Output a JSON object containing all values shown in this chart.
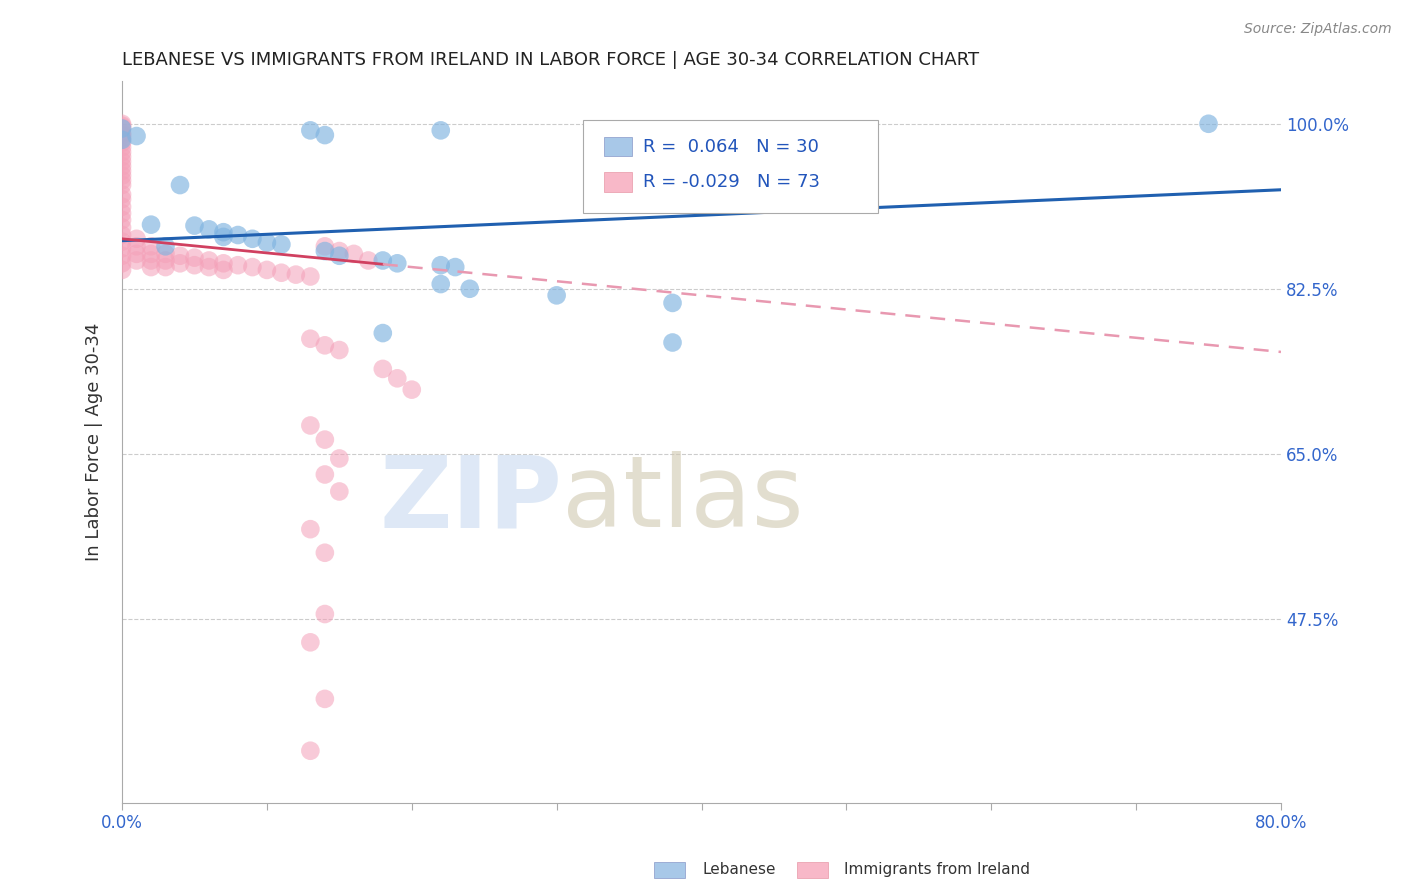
{
  "title": "LEBANESE VS IMMIGRANTS FROM IRELAND IN LABOR FORCE | AGE 30-34 CORRELATION CHART",
  "source": "Source: ZipAtlas.com",
  "ylabel": "In Labor Force | Age 30-34",
  "x_min": 0.0,
  "x_max": 0.8,
  "y_min": 0.28,
  "y_max": 1.045,
  "x_ticks": [
    0.0,
    0.1,
    0.2,
    0.3,
    0.4,
    0.5,
    0.6,
    0.7,
    0.8
  ],
  "x_tick_labels": [
    "0.0%",
    "",
    "",
    "",
    "",
    "",
    "",
    "",
    "80.0%"
  ],
  "y_ticks": [
    0.475,
    0.65,
    0.825,
    1.0
  ],
  "y_tick_labels": [
    "47.5%",
    "65.0%",
    "82.5%",
    "100.0%"
  ],
  "blue_color": "#7fb3e0",
  "pink_color": "#f4a0b8",
  "blue_line_color": "#2060b0",
  "pink_line_solid_color": "#d04060",
  "pink_line_dash_color": "#e898b0",
  "grid_color": "#cccccc",
  "scatter_blue": [
    [
      0.0,
      0.995
    ],
    [
      0.0,
      0.983
    ],
    [
      0.01,
      0.987
    ],
    [
      0.13,
      0.993
    ],
    [
      0.14,
      0.988
    ],
    [
      0.22,
      0.993
    ],
    [
      0.04,
      0.935
    ],
    [
      0.03,
      0.87
    ],
    [
      0.02,
      0.893
    ],
    [
      0.05,
      0.892
    ],
    [
      0.06,
      0.888
    ],
    [
      0.07,
      0.885
    ],
    [
      0.07,
      0.88
    ],
    [
      0.08,
      0.882
    ],
    [
      0.09,
      0.878
    ],
    [
      0.1,
      0.874
    ],
    [
      0.11,
      0.872
    ],
    [
      0.14,
      0.865
    ],
    [
      0.15,
      0.86
    ],
    [
      0.18,
      0.855
    ],
    [
      0.19,
      0.852
    ],
    [
      0.22,
      0.85
    ],
    [
      0.23,
      0.848
    ],
    [
      0.22,
      0.83
    ],
    [
      0.24,
      0.825
    ],
    [
      0.3,
      0.818
    ],
    [
      0.38,
      0.81
    ],
    [
      0.18,
      0.778
    ],
    [
      0.38,
      0.768
    ],
    [
      0.75,
      1.0
    ]
  ],
  "scatter_pink": [
    [
      0.0,
      1.0
    ],
    [
      0.0,
      0.998
    ],
    [
      0.0,
      0.996
    ],
    [
      0.0,
      0.99
    ],
    [
      0.0,
      0.988
    ],
    [
      0.0,
      0.985
    ],
    [
      0.0,
      0.98
    ],
    [
      0.0,
      0.975
    ],
    [
      0.0,
      0.97
    ],
    [
      0.0,
      0.965
    ],
    [
      0.0,
      0.96
    ],
    [
      0.0,
      0.955
    ],
    [
      0.0,
      0.95
    ],
    [
      0.0,
      0.945
    ],
    [
      0.0,
      0.94
    ],
    [
      0.0,
      0.935
    ],
    [
      0.0,
      0.925
    ],
    [
      0.0,
      0.92
    ],
    [
      0.0,
      0.912
    ],
    [
      0.0,
      0.905
    ],
    [
      0.0,
      0.898
    ],
    [
      0.0,
      0.89
    ],
    [
      0.0,
      0.882
    ],
    [
      0.0,
      0.875
    ],
    [
      0.0,
      0.868
    ],
    [
      0.0,
      0.86
    ],
    [
      0.0,
      0.852
    ],
    [
      0.0,
      0.845
    ],
    [
      0.01,
      0.878
    ],
    [
      0.01,
      0.87
    ],
    [
      0.01,
      0.862
    ],
    [
      0.01,
      0.855
    ],
    [
      0.02,
      0.87
    ],
    [
      0.02,
      0.862
    ],
    [
      0.02,
      0.855
    ],
    [
      0.02,
      0.848
    ],
    [
      0.03,
      0.862
    ],
    [
      0.03,
      0.855
    ],
    [
      0.03,
      0.848
    ],
    [
      0.04,
      0.86
    ],
    [
      0.04,
      0.852
    ],
    [
      0.05,
      0.858
    ],
    [
      0.05,
      0.85
    ],
    [
      0.06,
      0.855
    ],
    [
      0.06,
      0.848
    ],
    [
      0.07,
      0.852
    ],
    [
      0.07,
      0.845
    ],
    [
      0.08,
      0.85
    ],
    [
      0.09,
      0.848
    ],
    [
      0.1,
      0.845
    ],
    [
      0.11,
      0.842
    ],
    [
      0.12,
      0.84
    ],
    [
      0.13,
      0.838
    ],
    [
      0.14,
      0.87
    ],
    [
      0.15,
      0.865
    ],
    [
      0.16,
      0.862
    ],
    [
      0.17,
      0.855
    ],
    [
      0.13,
      0.772
    ],
    [
      0.14,
      0.765
    ],
    [
      0.15,
      0.76
    ],
    [
      0.18,
      0.74
    ],
    [
      0.19,
      0.73
    ],
    [
      0.2,
      0.718
    ],
    [
      0.13,
      0.68
    ],
    [
      0.14,
      0.665
    ],
    [
      0.15,
      0.645
    ],
    [
      0.14,
      0.628
    ],
    [
      0.15,
      0.61
    ],
    [
      0.13,
      0.57
    ],
    [
      0.14,
      0.545
    ],
    [
      0.14,
      0.48
    ],
    [
      0.13,
      0.45
    ],
    [
      0.14,
      0.39
    ],
    [
      0.13,
      0.335
    ]
  ]
}
